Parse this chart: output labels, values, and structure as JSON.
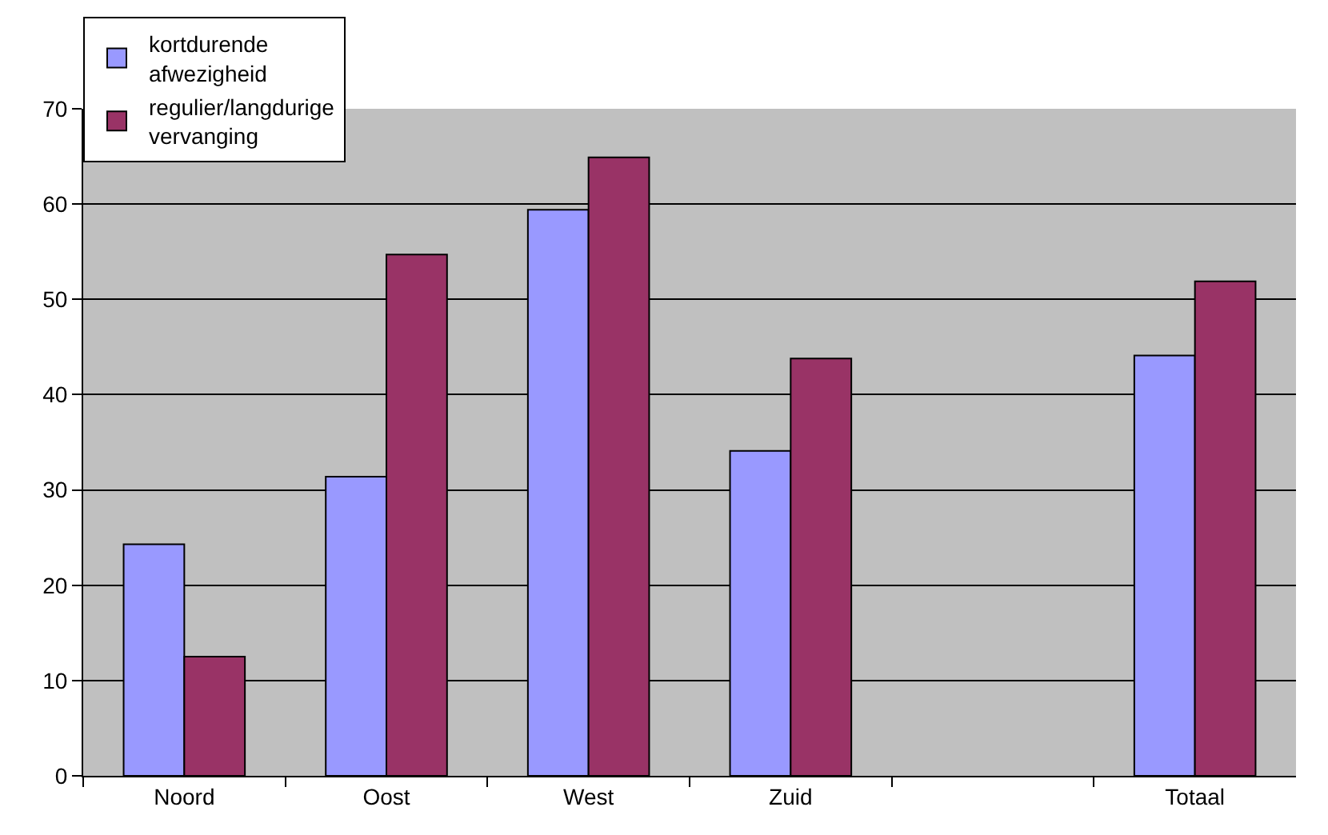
{
  "chart_data": {
    "type": "bar",
    "categories": [
      "Noord",
      "Oost",
      "West",
      "Zuid",
      null,
      "Totaal"
    ],
    "series": [
      {
        "name": "kortdurende afwezigheid",
        "color": "#9999ff",
        "values": [
          24.3,
          31.4,
          59.4,
          34.1,
          null,
          44.1
        ]
      },
      {
        "name": "regulier/langdurige vervanging",
        "color": "#993366",
        "values": [
          12.5,
          54.7,
          64.9,
          43.8,
          null,
          51.9
        ]
      }
    ],
    "ylim": [
      0,
      70
    ],
    "yticks": [
      0,
      10,
      20,
      30,
      40,
      50,
      60,
      70
    ],
    "grid": "y",
    "legend": "top left"
  }
}
